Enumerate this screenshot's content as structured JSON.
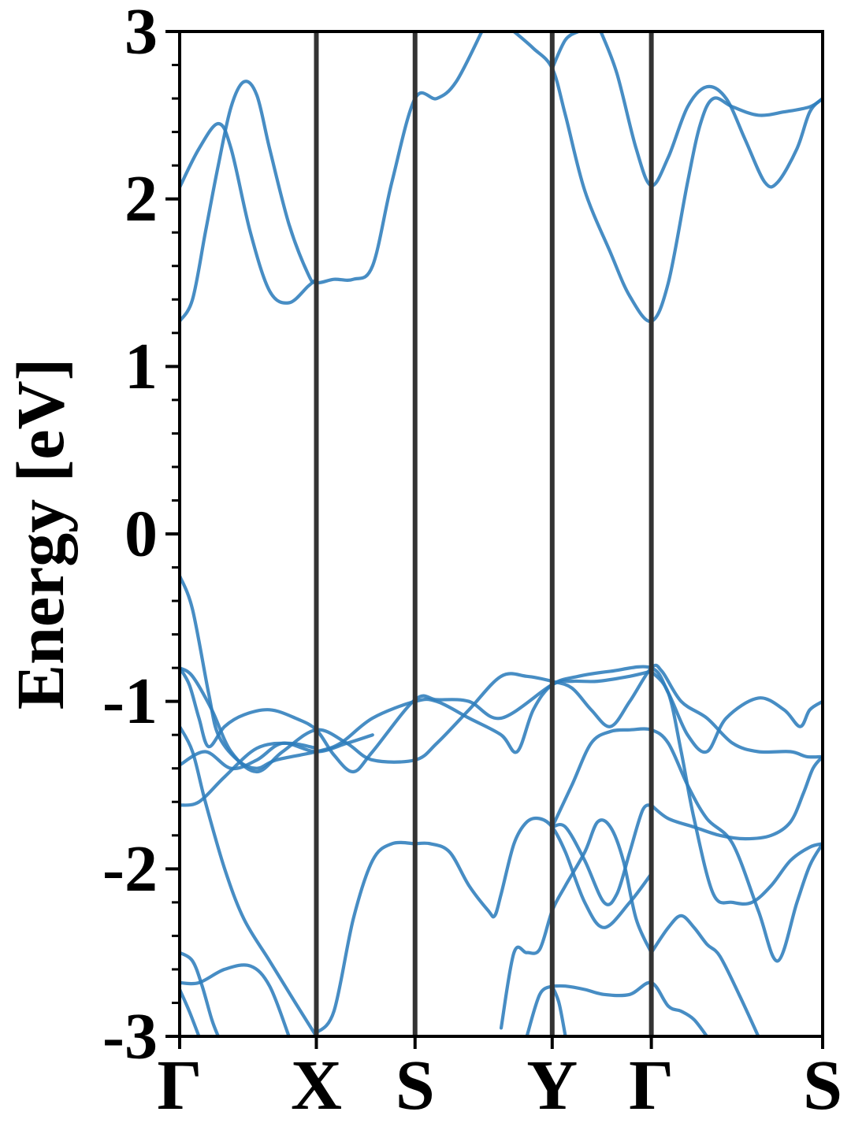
{
  "chart_data": {
    "type": "line",
    "title": "",
    "xlabel": "",
    "ylabel": "Energy [eV]",
    "ylim": [
      -3,
      3
    ],
    "ytick_labels": [
      "-3",
      "-2",
      "-1",
      "0",
      "1",
      "2",
      "3"
    ],
    "y_minor_step": 0.2,
    "kpath_positions": [
      0,
      0.2126,
      0.3661,
      0.5794,
      0.7336,
      1.0
    ],
    "kpath_labels": [
      "Γ",
      "X",
      "S",
      "Y",
      "Γ",
      "S"
    ],
    "line_color": "#2e7dbc",
    "vline_color": "#333333",
    "series": [
      {
        "values": [
          [
            0,
            -0.25
          ],
          [
            0.02,
            -0.45
          ],
          [
            0.045,
            -0.95
          ],
          [
            0.06,
            -1.2
          ],
          [
            0.09,
            -1.35
          ],
          [
            0.12,
            -1.4
          ],
          [
            0.15,
            -1.35
          ],
          [
            0.2126,
            -1.3
          ],
          [
            0.25,
            -1.25
          ],
          [
            0.3,
            -1.1
          ],
          [
            0.3661,
            -1.0
          ],
          [
            0.4,
            -1.0
          ],
          [
            0.45,
            -1.1
          ],
          [
            0.5,
            -1.2
          ],
          [
            0.525,
            -1.3
          ],
          [
            0.55,
            -1.05
          ],
          [
            0.5794,
            -0.9
          ],
          [
            0.62,
            -0.85
          ],
          [
            0.67,
            -0.82
          ],
          [
            0.7336,
            -0.8
          ],
          [
            0.76,
            -0.95
          ],
          [
            0.79,
            -1.2
          ],
          [
            0.82,
            -1.3
          ],
          [
            0.85,
            -1.1
          ],
          [
            0.9,
            -0.98
          ],
          [
            0.94,
            -1.05
          ],
          [
            0.965,
            -1.15
          ],
          [
            0.98,
            -1.05
          ],
          [
            1.0,
            -1.0
          ]
        ]
      },
      {
        "values": [
          [
            0,
            -0.8
          ],
          [
            0.02,
            -0.85
          ],
          [
            0.05,
            -1.05
          ],
          [
            0.08,
            -1.3
          ],
          [
            0.12,
            -1.42
          ],
          [
            0.16,
            -1.3
          ],
          [
            0.2126,
            -1.17
          ],
          [
            0.26,
            -1.25
          ],
          [
            0.3,
            -1.35
          ],
          [
            0.3661,
            -1.35
          ],
          [
            0.4,
            -1.25
          ],
          [
            0.45,
            -1.05
          ],
          [
            0.5,
            -0.85
          ],
          [
            0.54,
            -0.85
          ],
          [
            0.5794,
            -0.88
          ],
          [
            0.61,
            -0.92
          ],
          [
            0.64,
            -1.05
          ],
          [
            0.67,
            -1.15
          ],
          [
            0.7,
            -1.0
          ],
          [
            0.7336,
            -0.8
          ],
          [
            0.75,
            -0.82
          ],
          [
            0.78,
            -1.0
          ],
          [
            0.82,
            -1.1
          ],
          [
            0.86,
            -1.25
          ],
          [
            0.9,
            -1.3
          ],
          [
            0.95,
            -1.3
          ],
          [
            0.975,
            -1.33
          ],
          [
            1.0,
            -1.33
          ]
        ]
      },
      {
        "values": [
          [
            0,
            -0.8
          ],
          [
            0.015,
            -0.9
          ],
          [
            0.03,
            -1.1
          ],
          [
            0.045,
            -1.27
          ],
          [
            0.07,
            -1.15
          ],
          [
            0.1,
            -1.08
          ],
          [
            0.14,
            -1.05
          ],
          [
            0.18,
            -1.1
          ],
          [
            0.2126,
            -1.17
          ],
          [
            0.24,
            -1.32
          ],
          [
            0.27,
            -1.42
          ],
          [
            0.3,
            -1.3
          ],
          [
            0.3661,
            -0.99
          ],
          [
            0.4,
            -0.99
          ],
          [
            0.45,
            -1.0
          ],
          [
            0.5,
            -1.1
          ],
          [
            0.5794,
            -0.9
          ],
          [
            0.61,
            -0.88
          ],
          [
            0.65,
            -0.88
          ],
          [
            0.7,
            -0.85
          ],
          [
            0.7336,
            -0.82
          ]
        ]
      },
      {
        "values": [
          [
            0,
            -1.38
          ],
          [
            0.04,
            -1.3
          ],
          [
            0.08,
            -1.4
          ],
          [
            0.12,
            -1.35
          ],
          [
            0.16,
            -1.25
          ],
          [
            0.2126,
            -1.3
          ],
          [
            0.26,
            -1.25
          ],
          [
            0.3,
            -1.2
          ]
        ]
      },
      {
        "values": [
          [
            0,
            -1.62
          ],
          [
            0.03,
            -1.6
          ],
          [
            0.07,
            -1.45
          ],
          [
            0.12,
            -1.28
          ],
          [
            0.17,
            -1.25
          ],
          [
            0.2126,
            -1.28
          ]
        ]
      },
      {
        "values": [
          [
            0,
            -1.15
          ],
          [
            0.02,
            -1.3
          ],
          [
            0.04,
            -1.6
          ],
          [
            0.07,
            -2.0
          ],
          [
            0.1,
            -2.3
          ],
          [
            0.14,
            -2.55
          ],
          [
            0.18,
            -2.8
          ],
          [
            0.2126,
            -3.0
          ]
        ]
      },
      {
        "values": [
          [
            0.3661,
            -1.85
          ],
          [
            0.39,
            -1.85
          ],
          [
            0.42,
            -1.9
          ],
          [
            0.45,
            -2.1
          ],
          [
            0.48,
            -2.25
          ],
          [
            0.49,
            -2.28
          ],
          [
            0.5,
            -2.15
          ],
          [
            0.52,
            -1.85
          ],
          [
            0.54,
            -1.72
          ],
          [
            0.56,
            -1.7
          ],
          [
            0.5794,
            -1.75
          ],
          [
            0.6,
            -1.9
          ],
          [
            0.63,
            -2.2
          ],
          [
            0.66,
            -2.35
          ],
          [
            0.7,
            -2.2
          ],
          [
            0.7336,
            -2.03
          ]
        ]
      },
      {
        "values": [
          [
            0.2126,
            -2.98
          ],
          [
            0.24,
            -2.85
          ],
          [
            0.27,
            -2.3
          ],
          [
            0.3,
            -1.95
          ],
          [
            0.33,
            -1.85
          ],
          [
            0.3661,
            -1.85
          ]
        ]
      },
      {
        "values": [
          [
            0.5794,
            -1.75
          ],
          [
            0.61,
            -1.5
          ],
          [
            0.64,
            -1.25
          ],
          [
            0.67,
            -1.18
          ],
          [
            0.7,
            -1.17
          ],
          [
            0.7336,
            -1.17
          ],
          [
            0.76,
            -1.25
          ],
          [
            0.79,
            -1.5
          ],
          [
            0.82,
            -1.7
          ],
          [
            0.86,
            -1.85
          ],
          [
            0.9,
            -2.25
          ],
          [
            0.93,
            -2.55
          ],
          [
            0.96,
            -2.2
          ],
          [
            0.98,
            -1.98
          ],
          [
            1.0,
            -1.85
          ]
        ]
      },
      {
        "values": [
          [
            0.7336,
            -1.62
          ],
          [
            0.76,
            -1.7
          ],
          [
            0.8,
            -1.75
          ],
          [
            0.84,
            -1.8
          ],
          [
            0.88,
            -1.82
          ],
          [
            0.92,
            -1.8
          ],
          [
            0.95,
            -1.72
          ],
          [
            0.97,
            -1.55
          ],
          [
            0.985,
            -1.4
          ],
          [
            1.0,
            -1.33
          ]
        ]
      },
      {
        "values": [
          [
            0.7336,
            -1.62
          ],
          [
            0.72,
            -1.65
          ],
          [
            0.7,
            -1.9
          ],
          [
            0.68,
            -2.15
          ],
          [
            0.66,
            -2.2
          ],
          [
            0.63,
            -1.95
          ],
          [
            0.6,
            -1.75
          ],
          [
            0.5794,
            -1.75
          ]
        ]
      },
      {
        "values": [
          [
            0.7336,
            -2.5
          ],
          [
            0.76,
            -2.35
          ],
          [
            0.78,
            -2.28
          ],
          [
            0.8,
            -2.35
          ],
          [
            0.82,
            -2.45
          ],
          [
            0.84,
            -2.52
          ],
          [
            0.87,
            -2.75
          ],
          [
            0.9,
            -3.0
          ]
        ]
      },
      {
        "values": [
          [
            0.7336,
            -2.5
          ],
          [
            0.71,
            -2.3
          ],
          [
            0.69,
            -1.95
          ],
          [
            0.67,
            -1.75
          ],
          [
            0.65,
            -1.72
          ],
          [
            0.63,
            -1.9
          ],
          [
            0.6,
            -2.1
          ],
          [
            0.5794,
            -2.25
          ],
          [
            0.56,
            -2.48
          ],
          [
            0.54,
            -2.5
          ],
          [
            0.52,
            -2.5
          ],
          [
            0.5,
            -2.95
          ]
        ]
      },
      {
        "values": [
          [
            0.7336,
            -0.82
          ],
          [
            0.76,
            -0.95
          ],
          [
            0.78,
            -1.3
          ],
          [
            0.8,
            -1.7
          ],
          [
            0.83,
            -2.15
          ],
          [
            0.86,
            -2.2
          ],
          [
            0.89,
            -2.2
          ],
          [
            0.92,
            -2.1
          ],
          [
            0.95,
            -1.95
          ],
          [
            0.98,
            -1.87
          ],
          [
            1.0,
            -1.85
          ]
        ]
      },
      {
        "values": [
          [
            0,
            -2.5
          ],
          [
            0.02,
            -2.55
          ],
          [
            0.035,
            -2.7
          ],
          [
            0.05,
            -2.9
          ],
          [
            0.06,
            -3.0
          ]
        ]
      },
      {
        "values": [
          [
            0,
            -2.68
          ],
          [
            0.03,
            -2.68
          ],
          [
            0.07,
            -2.6
          ],
          [
            0.11,
            -2.58
          ],
          [
            0.14,
            -2.7
          ],
          [
            0.17,
            -3.0
          ]
        ]
      },
      {
        "values": [
          [
            0,
            -2.72
          ],
          [
            0.015,
            -2.85
          ],
          [
            0.03,
            -3.0
          ]
        ]
      },
      {
        "values": [
          [
            0.5794,
            -2.7
          ],
          [
            0.6,
            -2.7
          ],
          [
            0.63,
            -2.72
          ],
          [
            0.66,
            -2.75
          ],
          [
            0.7,
            -2.75
          ],
          [
            0.7336,
            -2.68
          ],
          [
            0.76,
            -2.82
          ],
          [
            0.78,
            -2.85
          ],
          [
            0.8,
            -2.9
          ],
          [
            0.82,
            -3.0
          ]
        ]
      },
      {
        "values": [
          [
            0.5794,
            -2.7
          ],
          [
            0.56,
            -2.75
          ],
          [
            0.54,
            -3.0
          ]
        ]
      },
      {
        "values": [
          [
            0.5794,
            -2.7
          ],
          [
            0.59,
            -2.8
          ],
          [
            0.6,
            -3.0
          ]
        ]
      },
      {
        "values": [
          [
            0,
            1.27
          ],
          [
            0.02,
            1.4
          ],
          [
            0.04,
            1.8
          ],
          [
            0.06,
            2.2
          ],
          [
            0.08,
            2.55
          ],
          [
            0.1,
            2.7
          ],
          [
            0.12,
            2.62
          ],
          [
            0.14,
            2.3
          ],
          [
            0.17,
            1.85
          ],
          [
            0.2,
            1.55
          ],
          [
            0.2126,
            1.5
          ],
          [
            0.24,
            1.52
          ],
          [
            0.27,
            1.52
          ],
          [
            0.3,
            1.6
          ],
          [
            0.33,
            2.1
          ],
          [
            0.3661,
            2.6
          ],
          [
            0.4,
            2.6
          ],
          [
            0.43,
            2.7
          ],
          [
            0.47,
            3.0
          ]
        ]
      },
      {
        "values": [
          [
            0,
            2.07
          ],
          [
            0.03,
            2.3
          ],
          [
            0.06,
            2.45
          ],
          [
            0.08,
            2.3
          ],
          [
            0.11,
            1.8
          ],
          [
            0.14,
            1.45
          ],
          [
            0.17,
            1.38
          ],
          [
            0.2,
            1.48
          ],
          [
            0.2126,
            1.52
          ]
        ]
      },
      {
        "values": [
          [
            0.52,
            3.0
          ],
          [
            0.55,
            2.9
          ],
          [
            0.5794,
            2.78
          ],
          [
            0.6,
            2.5
          ],
          [
            0.63,
            2.05
          ],
          [
            0.67,
            1.68
          ],
          [
            0.7,
            1.42
          ],
          [
            0.7336,
            1.27
          ],
          [
            0.76,
            1.5
          ],
          [
            0.79,
            2.1
          ],
          [
            0.81,
            2.45
          ],
          [
            0.83,
            2.6
          ],
          [
            0.86,
            2.55
          ],
          [
            0.9,
            2.5
          ],
          [
            0.94,
            2.52
          ],
          [
            0.98,
            2.55
          ],
          [
            1.0,
            2.6
          ]
        ]
      },
      {
        "values": [
          [
            0.5794,
            2.78
          ],
          [
            0.6,
            2.95
          ],
          [
            0.62,
            3.0
          ]
        ]
      },
      {
        "values": [
          [
            0.655,
            3.0
          ],
          [
            0.68,
            2.75
          ],
          [
            0.71,
            2.3
          ],
          [
            0.7336,
            2.08
          ],
          [
            0.76,
            2.25
          ],
          [
            0.79,
            2.55
          ],
          [
            0.82,
            2.67
          ],
          [
            0.85,
            2.6
          ],
          [
            0.88,
            2.35
          ],
          [
            0.91,
            2.1
          ],
          [
            0.93,
            2.1
          ],
          [
            0.96,
            2.3
          ],
          [
            0.98,
            2.52
          ],
          [
            1.0,
            2.6
          ]
        ]
      }
    ]
  }
}
